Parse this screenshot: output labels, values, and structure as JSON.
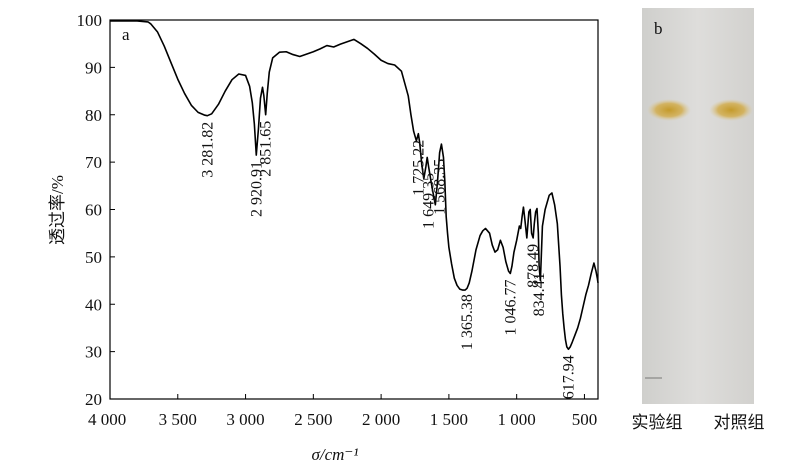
{
  "panel_a_letter": "a",
  "panel_b_letter": "b",
  "chart_data": {
    "type": "line",
    "title": "",
    "xlabel": "σ/cm⁻¹",
    "ylabel": "透过率/%",
    "xlim": [
      4000,
      400
    ],
    "ylim": [
      20,
      100
    ],
    "x_ticks": [
      4000,
      3500,
      3000,
      2500,
      2000,
      1500,
      1000,
      500
    ],
    "x_tick_labels": [
      "4 000",
      "3 500",
      "3 000",
      "2 500",
      "2 000",
      "1 500",
      "1 000",
      "500"
    ],
    "y_ticks": [
      20,
      30,
      40,
      50,
      60,
      70,
      80,
      90,
      100
    ],
    "y_tick_labels": [
      "20",
      "30",
      "40",
      "50",
      "60",
      "70",
      "80",
      "90",
      "100"
    ],
    "grid": false,
    "series": [
      {
        "x": [
          4000,
          3900,
          3800,
          3720,
          3700,
          3650,
          3600,
          3550,
          3500,
          3450,
          3400,
          3350,
          3300,
          3281.82,
          3250,
          3200,
          3150,
          3100,
          3050,
          3000,
          2970,
          2950,
          2935,
          2920.91,
          2905,
          2890,
          2875,
          2865,
          2851.65,
          2840,
          2825,
          2800,
          2750,
          2700,
          2650,
          2600,
          2550,
          2500,
          2450,
          2400,
          2350,
          2300,
          2250,
          2200,
          2150,
          2100,
          2050,
          2000,
          1950,
          1900,
          1850,
          1800,
          1780,
          1760,
          1740,
          1725.22,
          1715,
          1700,
          1685,
          1670,
          1660,
          1649.35,
          1635,
          1620,
          1600,
          1585,
          1568.35,
          1555,
          1540,
          1530,
          1520,
          1510,
          1500,
          1480,
          1460,
          1440,
          1420,
          1400,
          1380,
          1365.38,
          1350,
          1330,
          1300,
          1270,
          1250,
          1230,
          1200,
          1180,
          1160,
          1140,
          1120,
          1100,
          1080,
          1060,
          1046.77,
          1035,
          1020,
          1000,
          990,
          980,
          970,
          960,
          950,
          940,
          925,
          910,
          900,
          890,
          878.49,
          870,
          860,
          850,
          840,
          834.41,
          825,
          810,
          790,
          760,
          740,
          720,
          700,
          680,
          670,
          660,
          650,
          640,
          630,
          617.94,
          605,
          590,
          570,
          550,
          530,
          510,
          490,
          470,
          450,
          430,
          415,
          405,
          400
        ],
        "y": [
          99.8,
          99.8,
          99.8,
          99.6,
          99.2,
          97.5,
          94.5,
          91.0,
          87.5,
          84.5,
          82.0,
          80.5,
          79.9,
          79.8,
          80.2,
          82.2,
          85.0,
          87.4,
          88.6,
          88.3,
          86.0,
          82.5,
          78.0,
          71.5,
          77.0,
          83.5,
          85.8,
          84.0,
          80.0,
          84.5,
          89.0,
          92.0,
          93.2,
          93.3,
          92.7,
          92.3,
          92.8,
          93.3,
          93.9,
          94.6,
          94.3,
          94.9,
          95.4,
          95.9,
          95.0,
          94.0,
          92.8,
          91.5,
          90.8,
          90.5,
          89.2,
          84.0,
          80.0,
          76.5,
          74.5,
          76.0,
          74.0,
          69.5,
          66.5,
          69.0,
          71.0,
          69.0,
          66.5,
          64.0,
          61.0,
          65.5,
          72.0,
          73.8,
          71.0,
          66.0,
          58.5,
          55.0,
          52.0,
          48.5,
          45.5,
          44.0,
          43.2,
          43.0,
          43.0,
          43.4,
          44.5,
          47.0,
          51.5,
          54.5,
          55.5,
          56.0,
          55.0,
          52.5,
          51.0,
          51.5,
          53.5,
          52.0,
          49.0,
          47.0,
          46.5,
          48.0,
          51.0,
          53.5,
          55.0,
          56.5,
          56.0,
          58.5,
          60.5,
          58.0,
          54.0,
          59.5,
          60.0,
          55.0,
          54.0,
          57.0,
          59.5,
          60.2,
          55.0,
          48.0,
          45.0,
          56.5,
          60.0,
          63.0,
          63.5,
          61.0,
          57.0,
          48.0,
          42.0,
          38.0,
          35.0,
          32.5,
          31.0,
          30.5,
          31.0,
          32.0,
          33.5,
          35.0,
          37.0,
          39.5,
          42.0,
          44.0,
          46.5,
          48.7,
          47.0,
          45.5,
          44.5
        ]
      }
    ],
    "peaks": [
      {
        "x": 3281.82,
        "label": "3 281.82"
      },
      {
        "x": 2920.91,
        "label": "2 920.91"
      },
      {
        "x": 2851.65,
        "label": "2 851.65"
      },
      {
        "x": 1725.22,
        "label": "1 725.22"
      },
      {
        "x": 1649.35,
        "label": "1 649.35"
      },
      {
        "x": 1568.35,
        "label": "1 568.35"
      },
      {
        "x": 1365.38,
        "label": "1 365.38"
      },
      {
        "x": 1046.77,
        "label": "1 046.77"
      },
      {
        "x": 878.49,
        "label": "878.49"
      },
      {
        "x": 834.41,
        "label": "834.41"
      },
      {
        "x": 617.94,
        "label": "617.94"
      }
    ]
  },
  "tlc": {
    "lane_labels": [
      "实验组",
      "对照组"
    ],
    "plate_color": "#d7d6d3",
    "spot_color": "#c9a33a"
  },
  "colors": {
    "line": "#000000",
    "axis": "#000000"
  }
}
